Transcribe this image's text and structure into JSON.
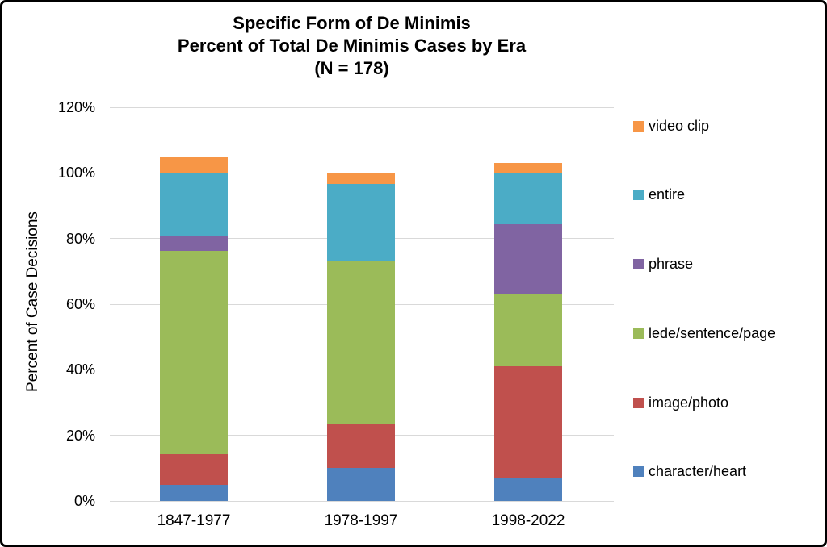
{
  "chart_data": {
    "type": "bar",
    "stacked": true,
    "title_lines": [
      "Specific Form of De Minimis",
      "Percent of Total De Minimis Cases by Era",
      "(N = 178)"
    ],
    "ylabel": "Percent of Case Decisions",
    "xlabel": "",
    "categories": [
      "1847-1977",
      "1978-1997",
      "1998-2022"
    ],
    "series": [
      {
        "name": "character/heart",
        "color": "#4F81BD",
        "values": [
          4.8,
          10.0,
          7.1
        ]
      },
      {
        "name": "image/photo",
        "color": "#C0504D",
        "values": [
          9.5,
          13.3,
          33.9
        ]
      },
      {
        "name": "lede/sentence/page",
        "color": "#9BBB59",
        "values": [
          61.9,
          50.0,
          22.0
        ]
      },
      {
        "name": "phrase",
        "color": "#8064A2",
        "values": [
          4.8,
          0.0,
          21.3
        ]
      },
      {
        "name": "entire",
        "color": "#4BACC6",
        "values": [
          19.0,
          23.3,
          15.7
        ]
      },
      {
        "name": "video clip",
        "color": "#F79646",
        "values": [
          4.8,
          3.3,
          3.1
        ]
      }
    ],
    "legend_order": [
      "video clip",
      "entire",
      "phrase",
      "lede/sentence/page",
      "image/photo",
      "character/heart"
    ],
    "legend_position": "right",
    "y_tick_labels": [
      "0%",
      "20%",
      "40%",
      "60%",
      "80%",
      "100%",
      "120%"
    ],
    "ylim": [
      0,
      120
    ],
    "y_tick_step": 20,
    "grid": true
  },
  "colors": {
    "grid": "#D9D9D9",
    "text": "#000000",
    "background": "#FFFFFF",
    "border": "#000000"
  }
}
